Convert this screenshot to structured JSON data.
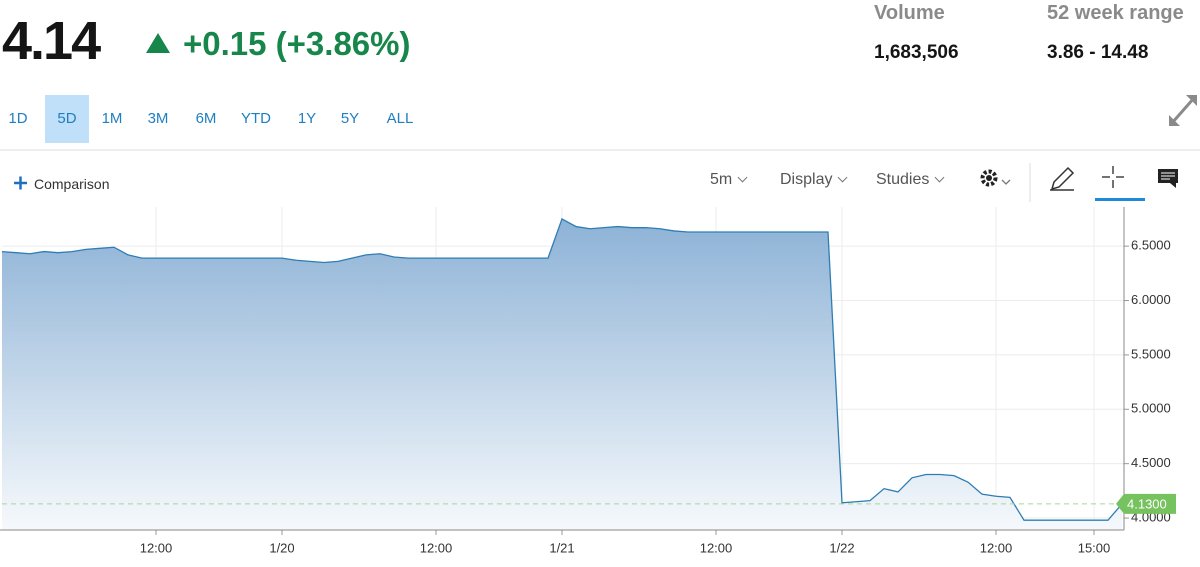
{
  "quote": {
    "price": "4.14",
    "change": "+0.15 (+3.86%)"
  },
  "stats": [
    {
      "label": "Volume",
      "value": "1,683,506"
    },
    {
      "label": "52 week range",
      "value": "3.86 - 14.48"
    }
  ],
  "range_tabs": [
    "1D",
    "5D",
    "1M",
    "3M",
    "6M",
    "YTD",
    "1Y",
    "5Y",
    "ALL"
  ],
  "toolbar": {
    "comparison": "Comparison",
    "interval": "5m",
    "display": "Display",
    "studies": "Studies"
  },
  "chart_data": {
    "type": "line",
    "categories": [
      null,
      null,
      null,
      null,
      null,
      null,
      null,
      null,
      null,
      null,
      null,
      "12:00",
      null,
      null,
      null,
      null,
      null,
      null,
      null,
      null,
      "1/20",
      null,
      null,
      null,
      null,
      null,
      null,
      null,
      null,
      null,
      null,
      "12:00",
      null,
      null,
      null,
      null,
      null,
      null,
      null,
      null,
      "1/21",
      null,
      null,
      null,
      null,
      null,
      null,
      null,
      null,
      null,
      null,
      "12:00",
      null,
      null,
      null,
      null,
      null,
      null,
      null,
      null,
      "1/22",
      null,
      null,
      null,
      null,
      null,
      null,
      null,
      null,
      null,
      null,
      "12:00",
      null,
      null,
      null,
      null,
      null,
      null,
      "15:00",
      null,
      null
    ],
    "values": [
      6.45,
      6.44,
      6.43,
      6.45,
      6.44,
      6.45,
      6.47,
      6.48,
      6.49,
      6.42,
      6.39,
      6.39,
      6.39,
      6.39,
      6.39,
      6.39,
      6.39,
      6.39,
      6.39,
      6.39,
      6.39,
      6.37,
      6.36,
      6.35,
      6.36,
      6.39,
      6.42,
      6.43,
      6.4,
      6.39,
      6.39,
      6.39,
      6.39,
      6.39,
      6.39,
      6.39,
      6.39,
      6.39,
      6.39,
      6.39,
      6.75,
      6.68,
      6.66,
      6.67,
      6.68,
      6.67,
      6.67,
      6.66,
      6.64,
      6.63,
      6.63,
      6.63,
      6.63,
      6.63,
      6.63,
      6.63,
      6.63,
      6.63,
      6.63,
      6.63,
      4.14,
      4.15,
      4.16,
      4.27,
      4.24,
      4.37,
      4.4,
      4.4,
      4.39,
      4.33,
      4.22,
      4.2,
      4.19,
      3.98,
      3.98,
      3.98,
      3.98,
      3.98,
      3.98,
      3.98,
      4.13
    ],
    "color": "#2e7db4",
    "ylim": [
      3.89,
      6.86
    ],
    "yticks": [
      {
        "value": 4,
        "label": "4.0000"
      },
      {
        "value": 4.5,
        "label": "4.5000"
      },
      {
        "value": 5,
        "label": "5.0000"
      },
      {
        "value": 5.5,
        "label": "5.5000"
      },
      {
        "value": 6,
        "label": "6.0000"
      },
      {
        "value": 6.5,
        "label": "6.5000"
      }
    ],
    "grid": true,
    "reference_line": {
      "value": 4.13,
      "label": "4.1300"
    }
  }
}
